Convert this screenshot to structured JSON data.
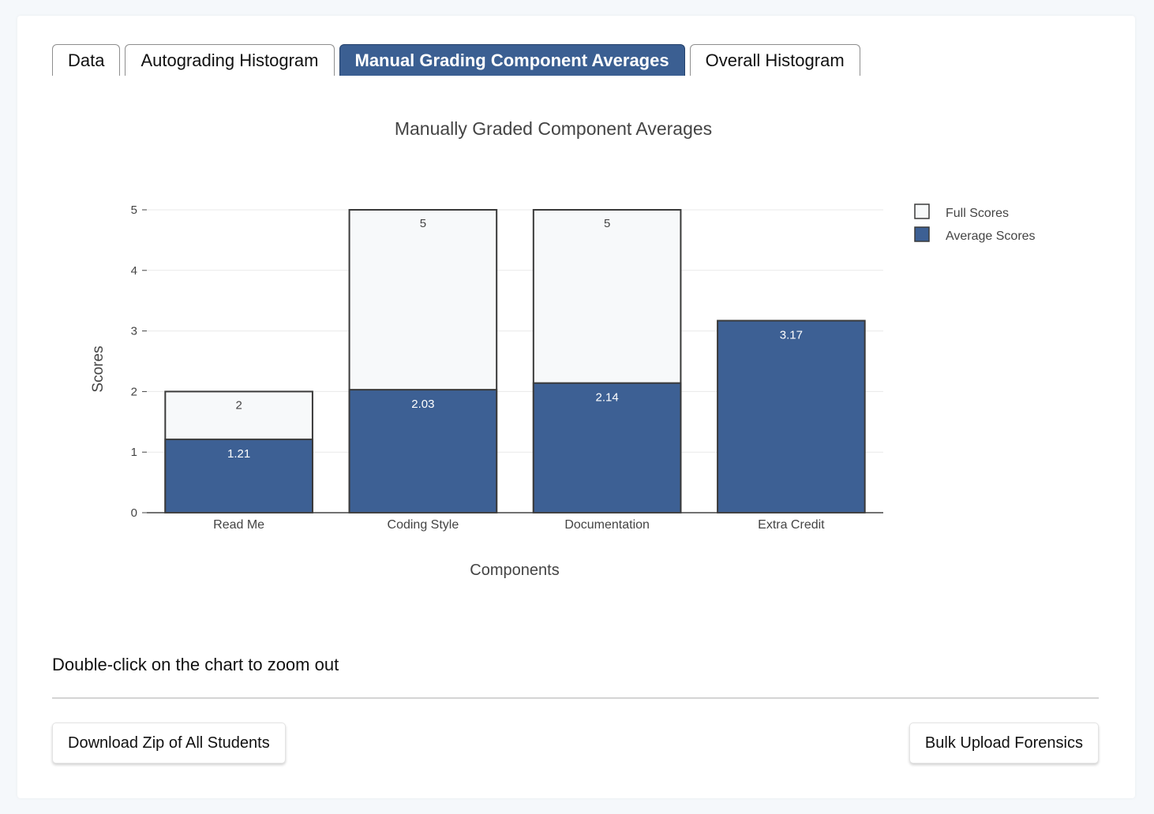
{
  "tabs": [
    {
      "label": "Data",
      "active": false
    },
    {
      "label": "Autograding Histogram",
      "active": false
    },
    {
      "label": "Manual Grading Component Averages",
      "active": true
    },
    {
      "label": "Overall Histogram",
      "active": false
    }
  ],
  "hint": "Double-click on the chart to zoom out",
  "buttons": {
    "download": "Download Zip of All Students",
    "forensics": "Bulk Upload Forensics"
  },
  "colors": {
    "full": "#f7f9fa",
    "average": "#3d6094",
    "outline": "#3a3a3a",
    "grid": "#e9e9e9"
  },
  "chart_data": {
    "type": "bar",
    "mode": "overlay",
    "title": "Manually Graded Component Averages",
    "xlabel": "Components",
    "ylabel": "Scores",
    "categories": [
      "Read Me",
      "Coding Style",
      "Documentation",
      "Extra Credit"
    ],
    "series": [
      {
        "name": "Full Scores",
        "values": [
          2,
          5,
          5,
          null
        ],
        "labels": [
          "2",
          "5",
          "5",
          ""
        ]
      },
      {
        "name": "Average Scores",
        "values": [
          1.21,
          2.03,
          2.14,
          3.17
        ],
        "labels": [
          "1.21",
          "2.03",
          "2.14",
          "3.17"
        ]
      }
    ],
    "ylim": [
      0,
      5
    ],
    "yticks": [
      "0",
      "1",
      "2",
      "3",
      "4",
      "5"
    ],
    "grid": true,
    "legend_position": "top-right"
  }
}
